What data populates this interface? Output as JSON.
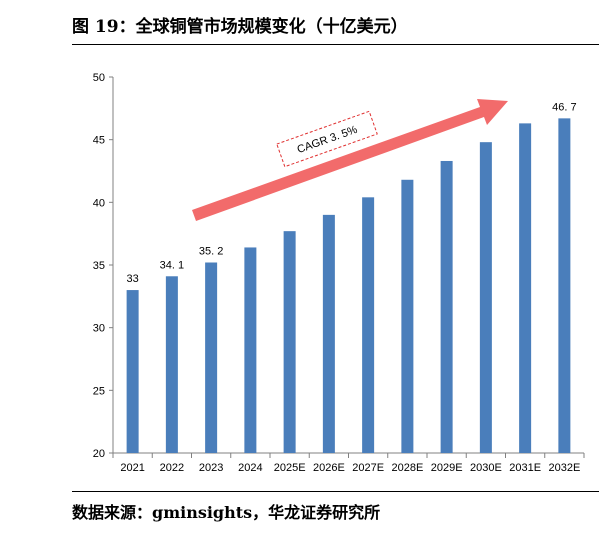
{
  "figure": {
    "title": "图 19：全球铜管市场规模变化（十亿美元）",
    "source": "数据来源：gminsights，华龙证券研究所"
  },
  "chart_data": {
    "type": "bar",
    "title": "",
    "xlabel": "",
    "ylabel": "",
    "categories": [
      "2021",
      "2022",
      "2023",
      "2024",
      "2025E",
      "2026E",
      "2027E",
      "2028E",
      "2029E",
      "2030E",
      "2031E",
      "2032E"
    ],
    "values": [
      33,
      34.1,
      35.2,
      36.4,
      37.7,
      39.0,
      40.4,
      41.8,
      43.3,
      44.8,
      46.3,
      46.7
    ],
    "data_labels": [
      {
        "category": "2021",
        "text": "33"
      },
      {
        "category": "2022",
        "text": "34. 1"
      },
      {
        "category": "2023",
        "text": "35. 2"
      },
      {
        "category": "2032E",
        "text": "46. 7"
      }
    ],
    "ylim": [
      20,
      50
    ],
    "yticks": [
      20,
      25,
      30,
      35,
      40,
      45,
      50
    ],
    "grid": false,
    "bar_color": "#4a7ebb",
    "annotation": {
      "text": "CAGR 3. 5%",
      "arrow_color": "#f26b6b",
      "box_border_color": "#e03030"
    }
  }
}
